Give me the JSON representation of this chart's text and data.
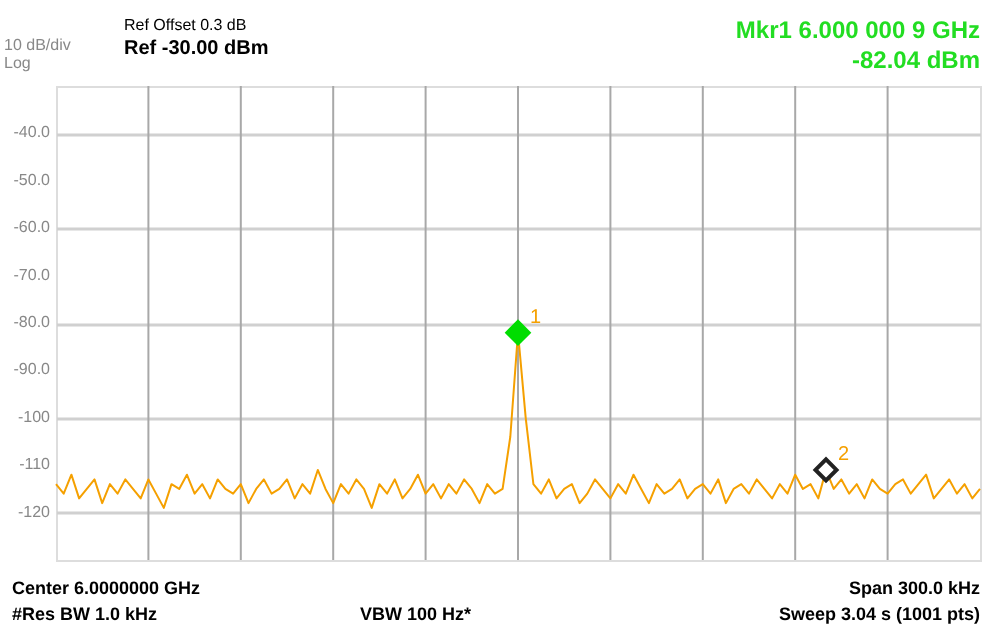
{
  "chart_data": {
    "type": "line",
    "annotations": [
      "10 dB/div",
      "Log",
      "Ref Offset 0.3 dB",
      "Ref -30.00 dBm",
      "Mkr1 6.000 000 9 GHz",
      "-82.04 dBm",
      "Center 6.0000000 GHz",
      "#Res BW 1.0 kHz",
      "VBW 100 Hz*",
      "Span 300.0 kHz",
      "Sweep  3.04 s (1001 pts)"
    ],
    "categories": [
      null,
      null,
      null,
      null,
      null,
      null,
      null,
      null,
      null,
      null,
      null,
      null,
      null,
      null,
      null,
      null,
      null,
      null,
      null,
      null,
      null,
      null,
      null,
      null,
      null,
      null,
      null,
      null,
      null,
      null,
      null,
      null,
      null,
      null,
      null,
      null,
      null,
      null,
      null,
      null,
      null,
      null,
      null,
      null,
      null,
      null,
      null,
      null,
      null,
      null,
      null,
      null,
      null,
      null,
      null,
      null,
      null,
      null,
      null,
      null,
      null,
      null,
      null,
      null,
      null,
      null,
      null,
      null,
      null,
      null,
      null,
      null,
      null,
      null,
      null,
      null,
      null,
      null,
      null,
      null,
      null,
      null,
      null,
      null,
      null,
      null,
      null,
      null,
      null,
      null,
      null,
      null,
      null,
      null,
      null,
      null,
      null,
      null,
      null,
      null,
      null,
      null,
      null,
      null,
      null,
      null,
      null,
      null,
      null,
      null,
      null,
      null,
      null,
      null,
      null,
      null,
      null,
      null,
      null,
      null,
      null
    ],
    "series": [
      {
        "color": "#f5a000",
        "values": [
          -114,
          -116,
          -112,
          -117,
          -115,
          -113,
          -118,
          -114,
          -116,
          -113,
          -115,
          -117,
          -113,
          -116,
          -119,
          -114,
          -115,
          -112,
          -116,
          -114,
          -117,
          -113,
          -115,
          -116,
          -114,
          -118,
          -115,
          -113,
          -116,
          -115,
          -113,
          -117,
          -114,
          -116,
          -111,
          -115,
          -118,
          -114,
          -116,
          -113,
          -115,
          -119,
          -114,
          -116,
          -113,
          -117,
          -115,
          -112,
          -116,
          -114,
          -117,
          -114,
          -116,
          -113,
          -115,
          -118,
          -114,
          -116,
          -115,
          -104,
          -82.04,
          -100,
          -114,
          -116,
          -113,
          -117,
          -115,
          -114,
          -118,
          -116,
          -113,
          -115,
          -117,
          -114,
          -116,
          -112,
          -115,
          -118,
          -114,
          -116,
          -115,
          -113,
          -117,
          -115,
          -114,
          -116,
          -113,
          -118,
          -115,
          -114,
          -116,
          -113,
          -115,
          -117,
          -114,
          -116,
          -112,
          -115,
          -114,
          -117,
          -111,
          -115,
          -113,
          -116,
          -114,
          -117,
          -113,
          -115,
          -116,
          -114,
          -113,
          -116,
          -114,
          -112,
          -117,
          -115,
          -113,
          -116,
          -114,
          -117,
          -115
        ]
      },
      {
        "type": "scatter",
        "name": "1",
        "marker": "diamond",
        "color": "#00dd00",
        "values": [
          null,
          null,
          null,
          null,
          null,
          null,
          null,
          null,
          null,
          null,
          null,
          null,
          null,
          null,
          null,
          null,
          null,
          null,
          null,
          null,
          null,
          null,
          null,
          null,
          null,
          null,
          null,
          null,
          null,
          null,
          null,
          null,
          null,
          null,
          null,
          null,
          null,
          null,
          null,
          null,
          null,
          null,
          null,
          null,
          null,
          null,
          null,
          null,
          null,
          null,
          null,
          null,
          null,
          null,
          null,
          null,
          null,
          null,
          null,
          null,
          -82.04,
          null,
          null,
          null,
          null,
          null,
          null,
          null,
          null,
          null,
          null,
          null,
          null,
          null,
          null,
          null,
          null,
          null,
          null,
          null,
          null,
          null,
          null,
          null,
          null,
          null,
          null,
          null,
          null,
          null,
          null,
          null,
          null,
          null,
          null,
          null,
          null,
          null,
          null,
          null,
          null,
          null,
          null,
          null,
          null,
          null,
          null,
          null,
          null,
          null,
          null,
          null,
          null,
          null,
          null,
          null,
          null,
          null,
          null,
          null,
          null
        ]
      },
      {
        "type": "scatter",
        "name": "2",
        "marker": "diamond",
        "color": "#222222",
        "values": [
          null,
          null,
          null,
          null,
          null,
          null,
          null,
          null,
          null,
          null,
          null,
          null,
          null,
          null,
          null,
          null,
          null,
          null,
          null,
          null,
          null,
          null,
          null,
          null,
          null,
          null,
          null,
          null,
          null,
          null,
          null,
          null,
          null,
          null,
          null,
          null,
          null,
          null,
          null,
          null,
          null,
          null,
          null,
          null,
          null,
          null,
          null,
          null,
          null,
          null,
          null,
          null,
          null,
          null,
          null,
          null,
          null,
          null,
          null,
          null,
          null,
          null,
          null,
          null,
          null,
          null,
          null,
          null,
          null,
          null,
          null,
          null,
          null,
          null,
          null,
          null,
          null,
          null,
          null,
          null,
          null,
          null,
          null,
          null,
          null,
          null,
          null,
          null,
          null,
          null,
          null,
          null,
          null,
          null,
          null,
          null,
          null,
          null,
          null,
          null,
          -111,
          null,
          null,
          null,
          null,
          null,
          null,
          null,
          null,
          null,
          null,
          null,
          null,
          null,
          null,
          null,
          null,
          null,
          null,
          null,
          null
        ]
      }
    ],
    "ylim": [
      -130,
      -30
    ],
    "yticks": [
      {
        "value": -40,
        "label": "-40.0"
      },
      {
        "value": -50,
        "label": "-50.0"
      },
      {
        "value": -60,
        "label": "-60.0"
      },
      {
        "value": -70,
        "label": "-70.0"
      },
      {
        "value": -80,
        "label": "-80.0"
      },
      {
        "value": -90,
        "label": "-90.0"
      },
      -100,
      -110,
      -120
    ],
    "grid": true,
    "tick_labels": "y"
  }
}
